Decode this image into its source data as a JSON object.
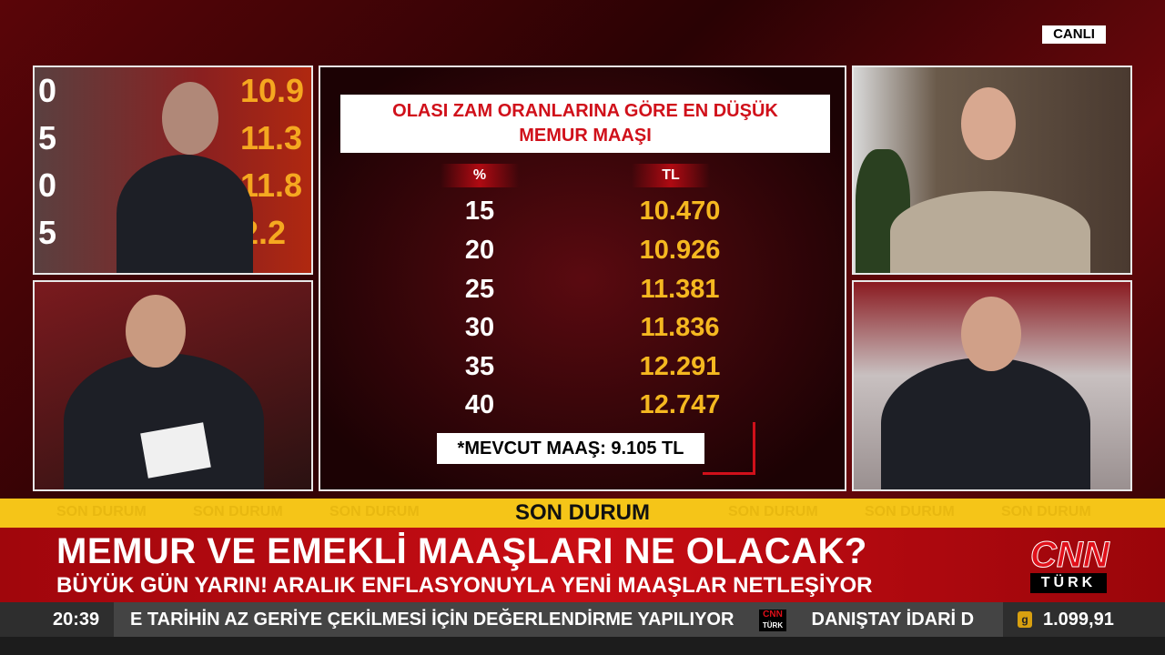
{
  "live_badge": "CANLI",
  "background_screen": {
    "digits": [
      "0",
      "5",
      "0",
      "5"
    ],
    "values": [
      "10.9",
      "11.3",
      "11.8",
      "2.2"
    ]
  },
  "graphic": {
    "title_line1": "OLASI ZAM ORANLARINA GÖRE EN DÜŞÜK",
    "title_line2": "MEMUR MAAŞI",
    "col_pct": "%",
    "col_tl": "TL",
    "rows": [
      {
        "pct": "15",
        "tl": "10.470"
      },
      {
        "pct": "20",
        "tl": "10.926"
      },
      {
        "pct": "25",
        "tl": "11.381"
      },
      {
        "pct": "30",
        "tl": "11.836"
      },
      {
        "pct": "35",
        "tl": "12.291"
      },
      {
        "pct": "40",
        "tl": "12.747"
      }
    ],
    "note": "*MEVCUT MAAŞ: 9.105 TL"
  },
  "banner": {
    "label": "SON DURUM",
    "ghost": "SON DURUM"
  },
  "headline": "MEMUR VE EMEKLİ MAAŞLARI NE OLACAK?",
  "subheadline": "BÜYÜK GÜN YARIN! ARALIK ENFLASYONUYLA YENİ MAAŞLAR NETLEŞİYOR",
  "logo": {
    "cnn": "CNN",
    "turk": "TÜRK"
  },
  "ticker": {
    "time": "20:39",
    "text1": "E TARİHİN AZ GERİYE ÇEKİLMESİ İÇİN DEĞERLENDİRME YAPILIYOR",
    "text2": "DANIŞTAY İDARİ D",
    "gold_icon": "g",
    "gold_price": "1.099,91"
  },
  "colors": {
    "accent_red": "#d0101a",
    "yellow": "#f5c518",
    "value_gold": "#f5b820"
  }
}
